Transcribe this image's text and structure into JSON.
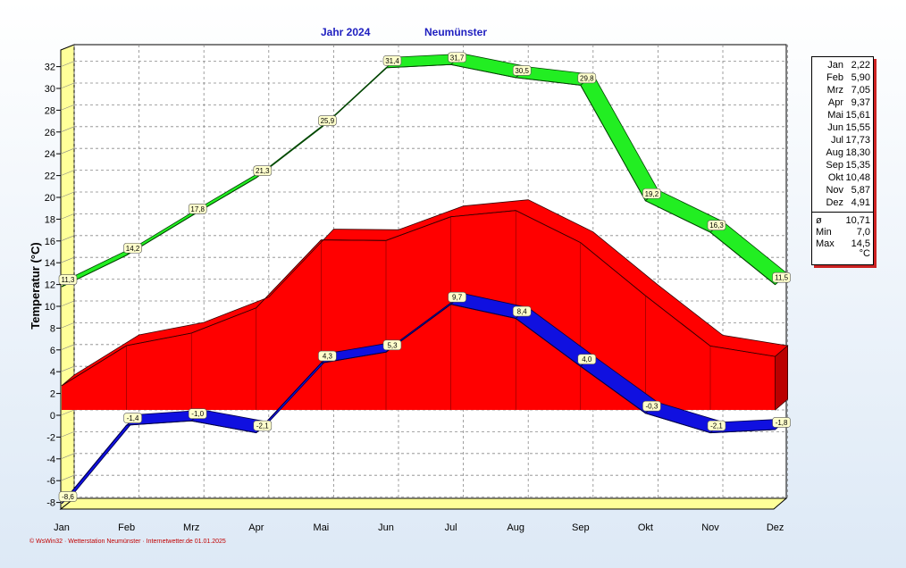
{
  "colors": {
    "max_band": "#22ee22",
    "mean_area": "#ff0000",
    "min_band": "#1010e0",
    "wall": "#ffff99",
    "title": "#2020c0"
  },
  "header": {
    "title_year": "Jahr  2024",
    "title_station": "Neumünster"
  },
  "footer": "© WsWin32 · Wetterstation Neumünster · Internetwetter.de  01.01.2025",
  "legend": {
    "months": [
      {
        "name": "Jan",
        "value": "2,22"
      },
      {
        "name": "Feb",
        "value": "5,90"
      },
      {
        "name": "Mrz",
        "value": "7,05"
      },
      {
        "name": "Apr",
        "value": "9,37"
      },
      {
        "name": "Mai",
        "value": "15,61"
      },
      {
        "name": "Jun",
        "value": "15,55"
      },
      {
        "name": "Jul",
        "value": "17,73"
      },
      {
        "name": "Aug",
        "value": "18,30"
      },
      {
        "name": "Sep",
        "value": "15,35"
      },
      {
        "name": "Okt",
        "value": "10,48"
      },
      {
        "name": "Nov",
        "value": "5,87"
      },
      {
        "name": "Dez",
        "value": "4,91"
      }
    ],
    "stats": [
      {
        "name": "ø",
        "value": "10,71"
      },
      {
        "name": "Min",
        "value": "7,0"
      },
      {
        "name": "Max",
        "value": "14,5"
      }
    ],
    "unit": "°C"
  },
  "chart_data": {
    "type": "area",
    "title": "Jahr  2024          Neumünster",
    "ylabel": "Temperatur  (°C)",
    "ylim": [
      -9,
      33
    ],
    "yticks": [
      "-8",
      "-6",
      "-4",
      "-2",
      "0",
      "2",
      "4",
      "6",
      "8",
      "10",
      "12",
      "14",
      "16",
      "18",
      "20",
      "22",
      "24",
      "26",
      "28",
      "30",
      "32"
    ],
    "categories": [
      "Jan",
      "Feb",
      "Mrz",
      "Apr",
      "Mai",
      "Jun",
      "Jul",
      "Aug",
      "Sep",
      "Okt",
      "Nov",
      "Dez"
    ],
    "grid": true,
    "series": [
      {
        "name": "Max",
        "values": [
          11.3,
          14.2,
          17.8,
          21.3,
          25.9,
          31.4,
          31.7,
          30.5,
          29.8,
          19.2,
          16.3,
          11.5
        ],
        "labels": [
          "11,3",
          "14,2",
          "17,8",
          "21,3",
          "25,9",
          "31,4",
          "31,7",
          "30,5",
          "29,8",
          "19,2",
          "16,3",
          "11,5"
        ]
      },
      {
        "name": "Mittel",
        "values": [
          2.22,
          5.9,
          7.05,
          9.37,
          15.61,
          15.55,
          17.73,
          18.3,
          15.35,
          10.48,
          5.87,
          4.91
        ]
      },
      {
        "name": "Min",
        "values": [
          -8.6,
          -1.4,
          -1.0,
          -2.1,
          4.3,
          5.3,
          9.7,
          8.4,
          4.0,
          -0.3,
          -2.1,
          -1.8
        ],
        "labels": [
          "-8,6",
          "-1,4",
          "-1,0",
          "-2,1",
          "4,3",
          "5,3",
          "9,7",
          "8,4",
          "4,0",
          "-0,3",
          "-2,1",
          "-1,8"
        ]
      }
    ]
  }
}
